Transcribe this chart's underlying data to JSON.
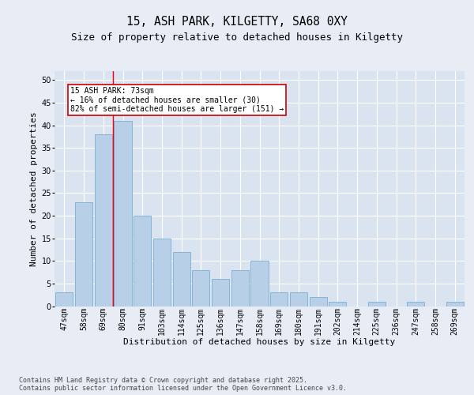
{
  "title1": "15, ASH PARK, KILGETTY, SA68 0XY",
  "title2": "Size of property relative to detached houses in Kilgetty",
  "xlabel": "Distribution of detached houses by size in Kilgetty",
  "ylabel": "Number of detached properties",
  "categories": [
    "47sqm",
    "58sqm",
    "69sqm",
    "80sqm",
    "91sqm",
    "103sqm",
    "114sqm",
    "125sqm",
    "136sqm",
    "147sqm",
    "158sqm",
    "169sqm",
    "180sqm",
    "191sqm",
    "202sqm",
    "214sqm",
    "225sqm",
    "236sqm",
    "247sqm",
    "258sqm",
    "269sqm"
  ],
  "values": [
    3,
    23,
    38,
    41,
    20,
    15,
    12,
    8,
    6,
    8,
    10,
    3,
    3,
    2,
    1,
    0,
    1,
    0,
    1,
    0,
    1
  ],
  "bar_color": "#b8cfe8",
  "bar_edge_color": "#7aafd4",
  "background_color": "#e8edf5",
  "plot_bg_color": "#dae3f0",
  "grid_color": "#ffffff",
  "annotation_text": "15 ASH PARK: 73sqm\n← 16% of detached houses are smaller (30)\n82% of semi-detached houses are larger (151) →",
  "annotation_box_color": "#ffffff",
  "annotation_box_edge": "#cc0000",
  "footer1": "Contains HM Land Registry data © Crown copyright and database right 2025.",
  "footer2": "Contains public sector information licensed under the Open Government Licence v3.0.",
  "ylim": [
    0,
    52
  ],
  "yticks": [
    0,
    5,
    10,
    15,
    20,
    25,
    30,
    35,
    40,
    45,
    50
  ],
  "red_line_x": 2.5,
  "title1_fontsize": 10.5,
  "title2_fontsize": 9,
  "axis_label_fontsize": 8,
  "tick_fontsize": 7,
  "annotation_fontsize": 7,
  "footer_fontsize": 6
}
